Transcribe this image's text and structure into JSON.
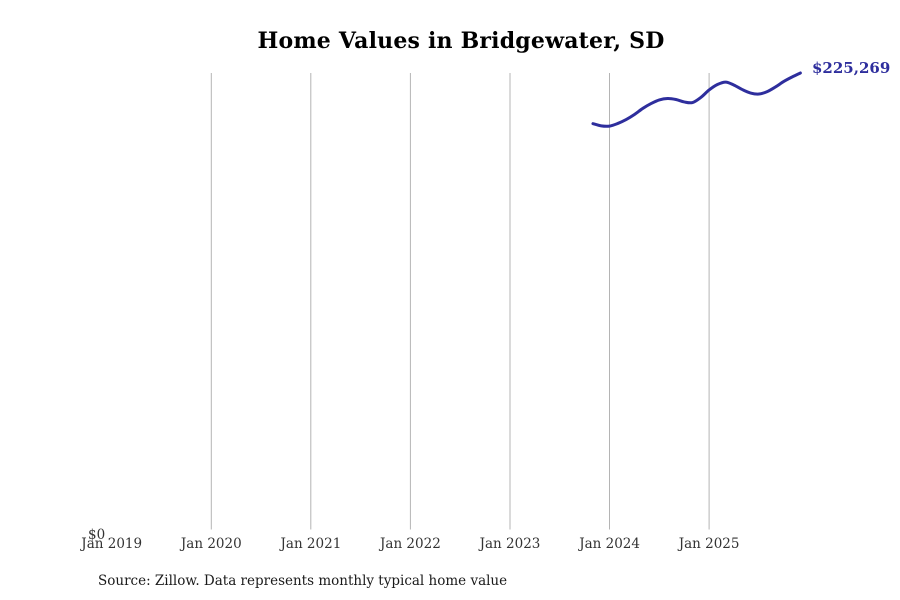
{
  "title": "Home Values in Bridgewater, SD",
  "end_label": "$225,269",
  "y_axis": {
    "zero_label": "$0"
  },
  "x_axis": {
    "tick_labels": [
      "Jan 2019",
      "Jan 2020",
      "Jan 2021",
      "Jan 2022",
      "Jan 2023",
      "Jan 2024",
      "Jan 2025"
    ]
  },
  "source_note": "Source: Zillow. Data represents monthly typical home value",
  "colors": {
    "line": "#2e2e9d",
    "grid": "#b4b4b4",
    "axis_text": "#333333",
    "title_text": "#000000"
  },
  "chart_data": {
    "type": "line",
    "title": "Home Values in Bridgewater, SD",
    "xlabel": "",
    "ylabel": "",
    "ylim": [
      0,
      225269
    ],
    "grid": "vertical-only",
    "legend": "none",
    "x_tick_labels": [
      "Jan 2019",
      "Jan 2020",
      "Jan 2021",
      "Jan 2022",
      "Jan 2023",
      "Jan 2024",
      "Jan 2025"
    ],
    "x": [
      "Nov 2023",
      "Dec 2023",
      "Jan 2024",
      "Feb 2024",
      "Mar 2024",
      "Apr 2024",
      "May 2024",
      "Jun 2024",
      "Jul 2024",
      "Aug 2024",
      "Sep 2024",
      "Oct 2024",
      "Nov 2024",
      "Dec 2024",
      "Jan 2025",
      "Feb 2025",
      "Mar 2025",
      "Apr 2025",
      "May 2025",
      "Jun 2025",
      "Jul 2025",
      "Aug 2025",
      "Sep 2025",
      "Oct 2025",
      "Nov 2025",
      "Dec 2025"
    ],
    "series": [
      {
        "name": "Monthly typical home value",
        "values": [
          200300,
          199200,
          199100,
          200400,
          202300,
          204800,
          207800,
          210200,
          212000,
          212700,
          212200,
          211000,
          210700,
          213200,
          216900,
          219600,
          220800,
          219300,
          217100,
          215400,
          214900,
          216100,
          218400,
          221100,
          223300,
          225269
        ]
      }
    ],
    "end_annotation": "$225,269"
  }
}
